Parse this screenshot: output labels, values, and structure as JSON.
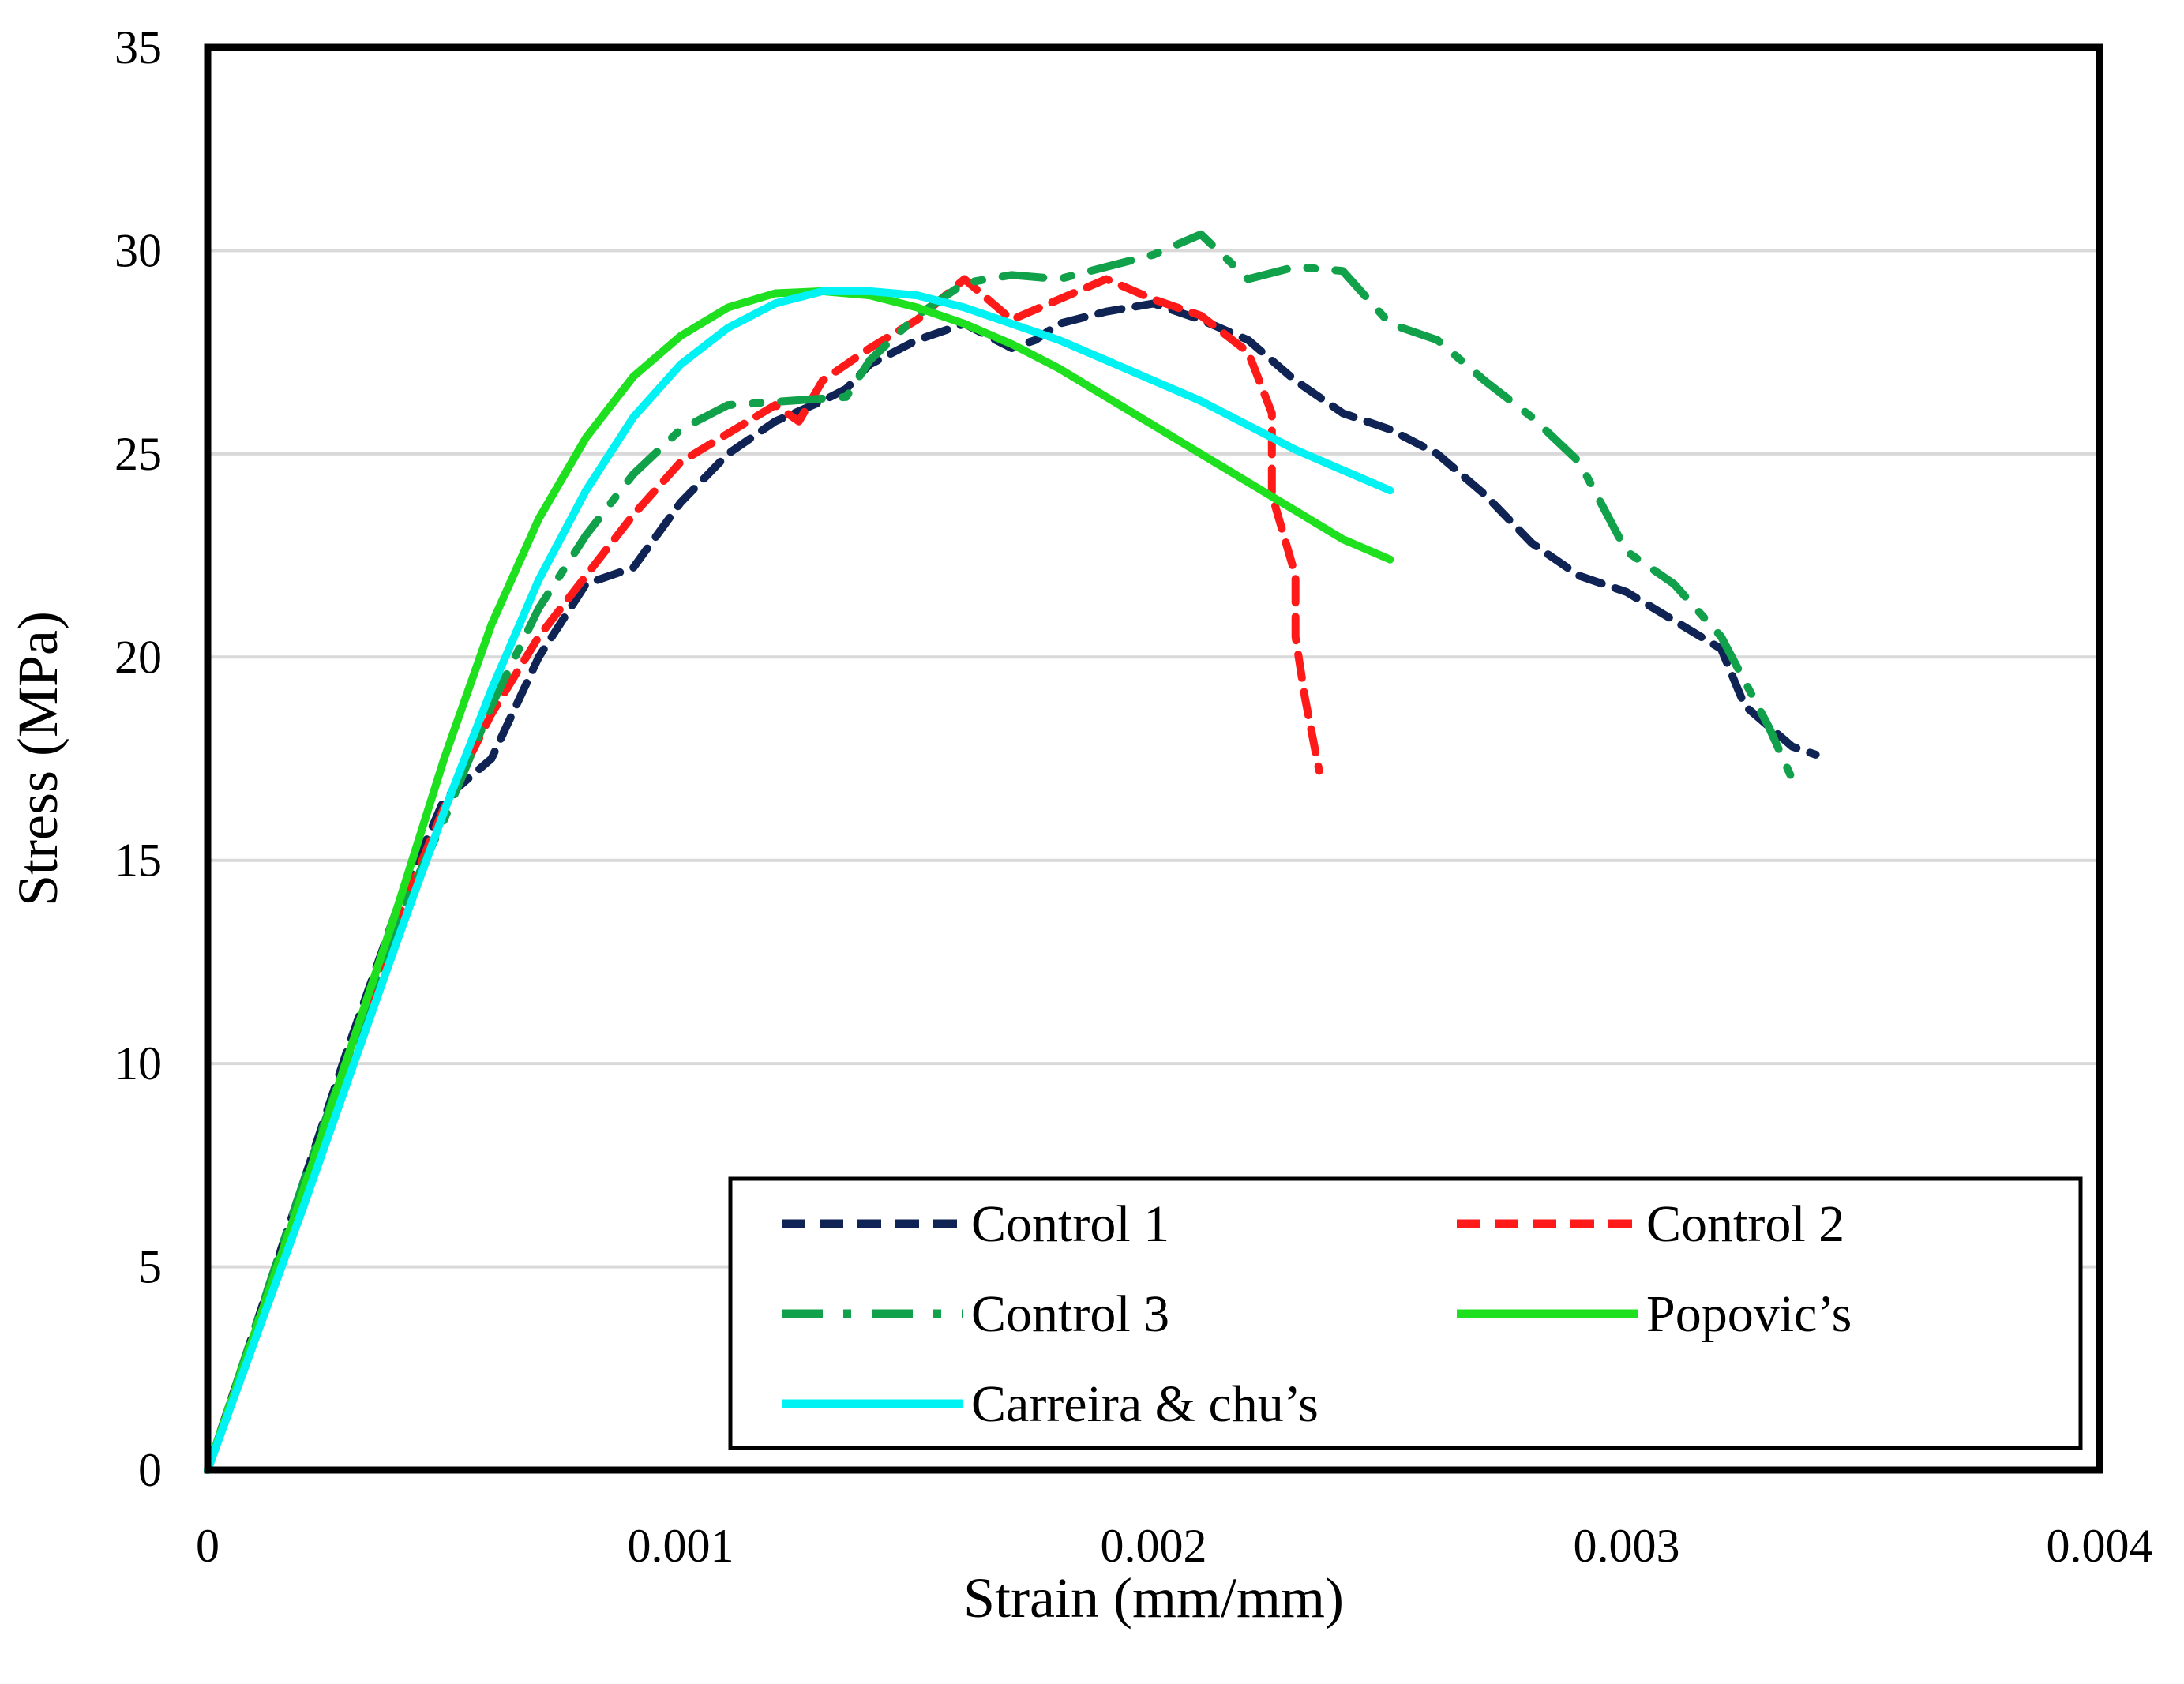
{
  "chart_data": {
    "type": "line",
    "title": "",
    "xlabel": "Strain (mm/mm)",
    "ylabel": "Stress (MPa)",
    "xlim": [
      0,
      0.004
    ],
    "ylim": [
      0,
      35
    ],
    "xticks": [
      0,
      0.001,
      0.002,
      0.003,
      0.004
    ],
    "xtick_labels": [
      "0",
      "0.001",
      "0.002",
      "0.003",
      "0.004"
    ],
    "yticks": [
      0,
      5,
      10,
      15,
      20,
      25,
      30,
      35
    ],
    "ytick_labels": [
      "0",
      "5",
      "10",
      "15",
      "20",
      "25",
      "30",
      "35"
    ],
    "grid": "horizontal",
    "legend_position": "bottom-right",
    "series": [
      {
        "name": "Control 1",
        "color": "#0f2454",
        "style": "dashed",
        "points": [
          [
            0,
            0
          ],
          [
            0.0001,
            3.5
          ],
          [
            0.0002,
            7
          ],
          [
            0.0003,
            10.5
          ],
          [
            0.0004,
            13.8
          ],
          [
            0.0005,
            16.5
          ],
          [
            0.0006,
            17.5
          ],
          [
            0.0007,
            20
          ],
          [
            0.0008,
            21.8
          ],
          [
            0.0009,
            22.2
          ],
          [
            0.001,
            23.8
          ],
          [
            0.0011,
            25
          ],
          [
            0.0012,
            25.8
          ],
          [
            0.0013,
            26.3
          ],
          [
            0.00135,
            26.6
          ],
          [
            0.0014,
            27.2
          ],
          [
            0.0015,
            27.8
          ],
          [
            0.0016,
            28.2
          ],
          [
            0.0017,
            27.6
          ],
          [
            0.00175,
            27.8
          ],
          [
            0.0018,
            28.2
          ],
          [
            0.0019,
            28.5
          ],
          [
            0.002,
            28.7
          ],
          [
            0.0021,
            28.3
          ],
          [
            0.0022,
            27.8
          ],
          [
            0.0023,
            26.8
          ],
          [
            0.0024,
            26
          ],
          [
            0.0025,
            25.6
          ],
          [
            0.0026,
            25
          ],
          [
            0.0027,
            24
          ],
          [
            0.0028,
            22.8
          ],
          [
            0.0029,
            22
          ],
          [
            0.003,
            21.6
          ],
          [
            0.0031,
            20.9
          ],
          [
            0.0032,
            20.2
          ],
          [
            0.00325,
            18.8
          ],
          [
            0.0033,
            18.3
          ],
          [
            0.00335,
            17.8
          ],
          [
            0.0034,
            17.6
          ]
        ]
      },
      {
        "name": "Control 2",
        "color": "#ff1a1a",
        "style": "dashed",
        "points": [
          [
            0,
            0
          ],
          [
            0.0001,
            3.4
          ],
          [
            0.0002,
            6.8
          ],
          [
            0.0003,
            10.2
          ],
          [
            0.0004,
            13.5
          ],
          [
            0.0005,
            16.3
          ],
          [
            0.0006,
            18.6
          ],
          [
            0.0007,
            20.5
          ],
          [
            0.0008,
            22
          ],
          [
            0.0009,
            23.5
          ],
          [
            0.001,
            24.8
          ],
          [
            0.0011,
            25.5
          ],
          [
            0.0012,
            26.2
          ],
          [
            0.00125,
            25.8
          ],
          [
            0.0013,
            26.8
          ],
          [
            0.0014,
            27.6
          ],
          [
            0.0015,
            28.3
          ],
          [
            0.0016,
            29.3
          ],
          [
            0.0017,
            28.3
          ],
          [
            0.0018,
            28.8
          ],
          [
            0.0019,
            29.3
          ],
          [
            0.002,
            28.8
          ],
          [
            0.0021,
            28.4
          ],
          [
            0.0022,
            27.5
          ],
          [
            0.00225,
            26
          ],
          [
            0.00225,
            24
          ],
          [
            0.0023,
            22
          ],
          [
            0.0023,
            20.5
          ],
          [
            0.00232,
            19
          ],
          [
            0.00235,
            17.2
          ]
        ]
      },
      {
        "name": "Control 3",
        "color": "#12a14b",
        "style": "dash-dot",
        "points": [
          [
            0,
            0
          ],
          [
            0.0001,
            3.5
          ],
          [
            0.0002,
            7
          ],
          [
            0.0003,
            10.3
          ],
          [
            0.0004,
            13.5
          ],
          [
            0.0005,
            16
          ],
          [
            0.0006,
            18.8
          ],
          [
            0.0007,
            21.2
          ],
          [
            0.0008,
            23
          ],
          [
            0.0009,
            24.5
          ],
          [
            0.001,
            25.6
          ],
          [
            0.0011,
            26.2
          ],
          [
            0.00135,
            26.4
          ],
          [
            0.0014,
            27.3
          ],
          [
            0.0015,
            28.4
          ],
          [
            0.0016,
            29.2
          ],
          [
            0.0017,
            29.4
          ],
          [
            0.0018,
            29.3
          ],
          [
            0.0019,
            29.6
          ],
          [
            0.002,
            29.9
          ],
          [
            0.0021,
            30.4
          ],
          [
            0.0022,
            29.3
          ],
          [
            0.0023,
            29.6
          ],
          [
            0.0024,
            29.5
          ],
          [
            0.0025,
            28.2
          ],
          [
            0.0026,
            27.8
          ],
          [
            0.0027,
            26.8
          ],
          [
            0.0028,
            25.9
          ],
          [
            0.0029,
            24.8
          ],
          [
            0.003,
            22.6
          ],
          [
            0.0031,
            21.8
          ],
          [
            0.0032,
            20.5
          ],
          [
            0.0033,
            18.3
          ],
          [
            0.00335,
            17
          ]
        ]
      },
      {
        "name": "Popovic’s",
        "color": "#1ee01e",
        "style": "solid",
        "points": [
          [
            0,
            0
          ],
          [
            0.0001,
            3.4
          ],
          [
            0.0002,
            6.8
          ],
          [
            0.0003,
            10.3
          ],
          [
            0.0004,
            13.8
          ],
          [
            0.0005,
            17.5
          ],
          [
            0.0006,
            20.8
          ],
          [
            0.0007,
            23.4
          ],
          [
            0.0008,
            25.4
          ],
          [
            0.0009,
            26.9
          ],
          [
            0.001,
            27.9
          ],
          [
            0.0011,
            28.6
          ],
          [
            0.0012,
            28.95
          ],
          [
            0.0013,
            29
          ],
          [
            0.0014,
            28.9
          ],
          [
            0.0015,
            28.6
          ],
          [
            0.0016,
            28.2
          ],
          [
            0.0017,
            27.7
          ],
          [
            0.0018,
            27.1
          ],
          [
            0.0019,
            26.4
          ],
          [
            0.002,
            25.7
          ],
          [
            0.0021,
            25
          ],
          [
            0.0022,
            24.3
          ],
          [
            0.0023,
            23.6
          ],
          [
            0.0024,
            22.9
          ],
          [
            0.0025,
            22.4
          ]
        ]
      },
      {
        "name": "Carreira & chu’s",
        "color": "#00f2f2",
        "style": "solid",
        "points": [
          [
            0,
            0
          ],
          [
            0.0001,
            3.2
          ],
          [
            0.0002,
            6.4
          ],
          [
            0.0003,
            9.7
          ],
          [
            0.0004,
            13
          ],
          [
            0.0005,
            16.2
          ],
          [
            0.0006,
            19.2
          ],
          [
            0.0007,
            21.9
          ],
          [
            0.0008,
            24.1
          ],
          [
            0.0009,
            25.9
          ],
          [
            0.001,
            27.2
          ],
          [
            0.0011,
            28.1
          ],
          [
            0.0012,
            28.7
          ],
          [
            0.0013,
            29
          ],
          [
            0.0014,
            29
          ],
          [
            0.0015,
            28.9
          ],
          [
            0.0016,
            28.6
          ],
          [
            0.0017,
            28.2
          ],
          [
            0.0018,
            27.8
          ],
          [
            0.0019,
            27.3
          ],
          [
            0.002,
            26.8
          ],
          [
            0.0021,
            26.3
          ],
          [
            0.0022,
            25.7
          ],
          [
            0.0023,
            25.1
          ],
          [
            0.0024,
            24.6
          ],
          [
            0.0025,
            24.1
          ]
        ]
      }
    ]
  }
}
